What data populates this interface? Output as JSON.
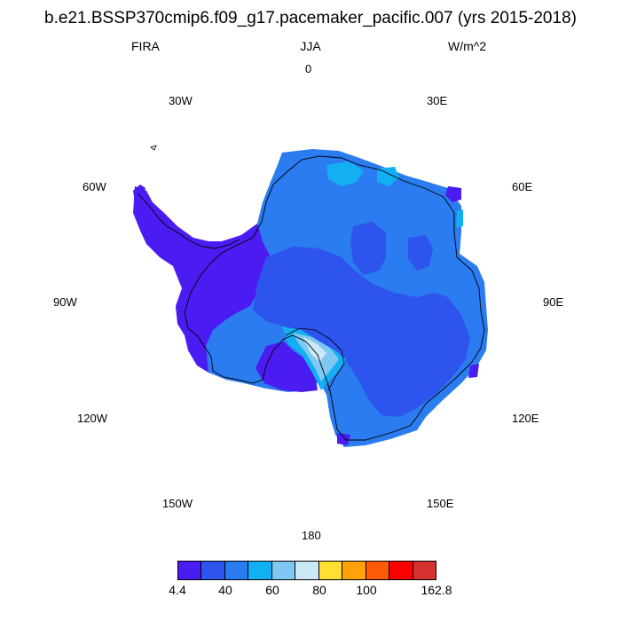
{
  "title": "b.e21.BSSP370cmip6.f09_g17.pacemaker_pacific.007 (yrs 2015-2018)",
  "variable": "FIRA",
  "season": "JJA",
  "units": "W/m^2",
  "longitude_labels": {
    "lon_0": "0",
    "lon_30e": "30E",
    "lon_60e": "60E",
    "lon_90e": "90E",
    "lon_120e": "120E",
    "lon_150e": "150E",
    "lon_180": "180",
    "lon_150w": "150W",
    "lon_120w": "120W",
    "lon_90w": "90W",
    "lon_60w": "60W",
    "lon_30w": "30W"
  },
  "colorbar": {
    "colors": [
      "#4b1cf2",
      "#2d55ee",
      "#2a7cf0",
      "#12b0f2",
      "#7fc8f2",
      "#cbe8f6",
      "#ffe033",
      "#ffa20a",
      "#ff5a0a",
      "#ff0000",
      "#d73030"
    ],
    "labels": [
      "4.4",
      "40",
      "60",
      "80",
      "100",
      "162.8"
    ]
  },
  "map": {
    "projection": "south polar stereographic",
    "region": "Antarctica"
  }
}
